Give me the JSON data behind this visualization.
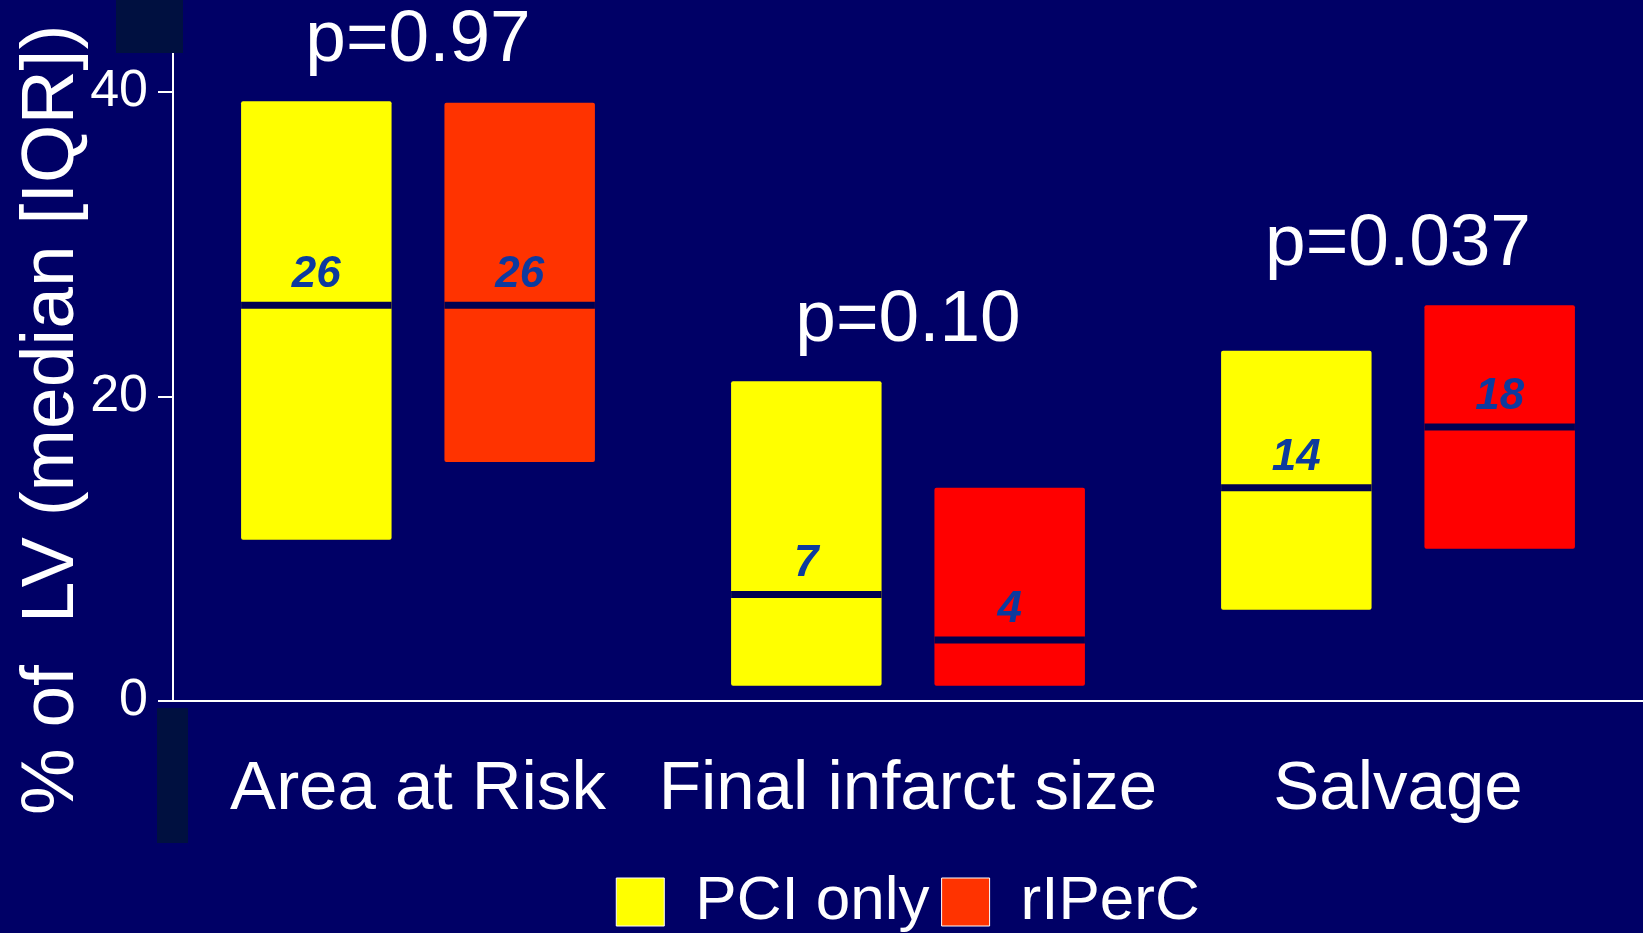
{
  "chart_data": {
    "type": "box",
    "ylabel": "% of  LV (median [IQR])",
    "categories": [
      "Area at Risk",
      "Final infarct size",
      "Salvage"
    ],
    "series": [
      {
        "name": "PCI only",
        "color": "#ffff00",
        "colors": [
          "#ffff00",
          "#ffff00",
          "#ffff00"
        ],
        "boxes": [
          {
            "low": 10.6,
            "q1": 10.6,
            "median": 26,
            "q3": 39.4,
            "high": 39.4
          },
          {
            "low": 1,
            "q1": 1,
            "median": 7,
            "q3": 21,
            "high": 21
          },
          {
            "low": 6,
            "q1": 6,
            "median": 14,
            "q3": 23,
            "high": 23
          }
        ],
        "value_labels": [
          "26",
          "7",
          "14"
        ]
      },
      {
        "name": "rIPerC",
        "color": "#ff3300",
        "colors": [
          "#ff3300",
          "#ff0000",
          "#ff0000"
        ],
        "boxes": [
          {
            "low": 15.7,
            "q1": 15.7,
            "median": 26,
            "q3": 39.3,
            "high": 39.3
          },
          {
            "low": 1,
            "q1": 1,
            "median": 4,
            "q3": 14,
            "high": 14
          },
          {
            "low": 10,
            "q1": 10,
            "median": 18,
            "q3": 26,
            "high": 26
          }
        ],
        "value_labels": [
          "26",
          "4",
          "18"
        ]
      }
    ],
    "ylim": [
      0,
      42.5
    ],
    "yticks": [
      0,
      20,
      40
    ],
    "legend": "bottom",
    "annotations": [
      "p=0.97",
      "p=0.10",
      "p=0.037"
    ]
  }
}
